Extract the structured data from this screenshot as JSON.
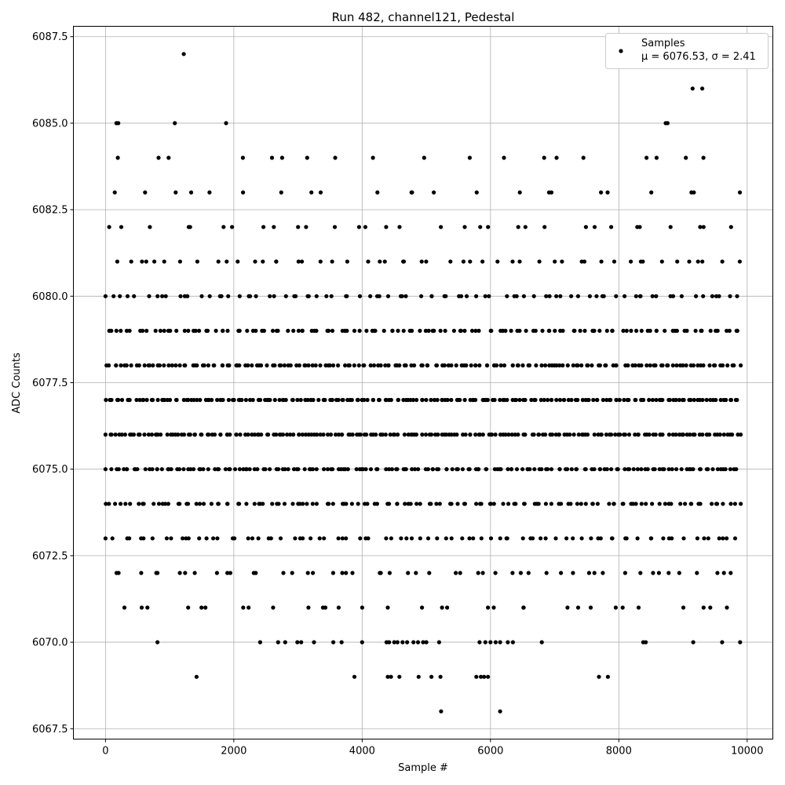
{
  "chart_data": {
    "type": "scatter",
    "title": "Run 482, channel121, Pedestal",
    "xlabel": "Sample #",
    "ylabel": "ADC Counts",
    "xlim": [
      -500,
      10400
    ],
    "ylim": [
      6067.2,
      6087.8
    ],
    "xticks": [
      0,
      2000,
      4000,
      6000,
      8000,
      10000
    ],
    "xtick_labels": [
      "0",
      "2000",
      "4000",
      "6000",
      "8000",
      "10000"
    ],
    "yticks": [
      6067.5,
      6070.0,
      6072.5,
      6075.0,
      6077.5,
      6080.0,
      6082.5,
      6085.0,
      6087.5
    ],
    "ytick_labels": [
      "6067.5",
      "6070.0",
      "6072.5",
      "6075.0",
      "6077.5",
      "6080.0",
      "6082.5",
      "6085.0",
      "6087.5"
    ],
    "grid": true,
    "legend": {
      "placement": "top-right",
      "entries": [
        {
          "name": "Samples",
          "stat_label": "μ = 6076.53, σ = 2.41"
        }
      ]
    },
    "marker_color": "#000000",
    "series": [
      {
        "name": "Samples",
        "x_range": [
          0,
          9900
        ],
        "levels": [
          {
            "y": 6068,
            "x": [
              5230,
              6150
            ]
          },
          {
            "y": 6069,
            "x": [
              1420,
              3880,
              4400,
              4450,
              4580,
              4880,
              5080,
              5220,
              5780,
              5850,
              5900,
              5960,
              7690,
              7830
            ]
          },
          {
            "y": 6070,
            "x": [
              810,
              2410,
              2690,
              2800,
              2990,
              3050,
              3250,
              3550,
              3680,
              4000,
              4380,
              4420,
              4500,
              4550,
              4630,
              4700,
              4800,
              4870,
              4950,
              5000,
              5200,
              5830,
              5920,
              6000,
              6080,
              6150,
              6270,
              6350,
              6800,
              8380,
              8420,
              9160,
              9610,
              9890
            ]
          },
          {
            "y": 6085,
            "x": [
              170,
              200,
              1080,
              1880,
              8730,
              8760
            ]
          },
          {
            "y": 6086,
            "x": [
              9150,
              9300
            ]
          },
          {
            "y": 6087,
            "x": [
              1220
            ]
          }
        ],
        "dense_levels": [
          6071,
          6072,
          6073,
          6074,
          6075,
          6076,
          6077,
          6078,
          6079,
          6080,
          6081,
          6082,
          6083,
          6084
        ]
      }
    ]
  }
}
